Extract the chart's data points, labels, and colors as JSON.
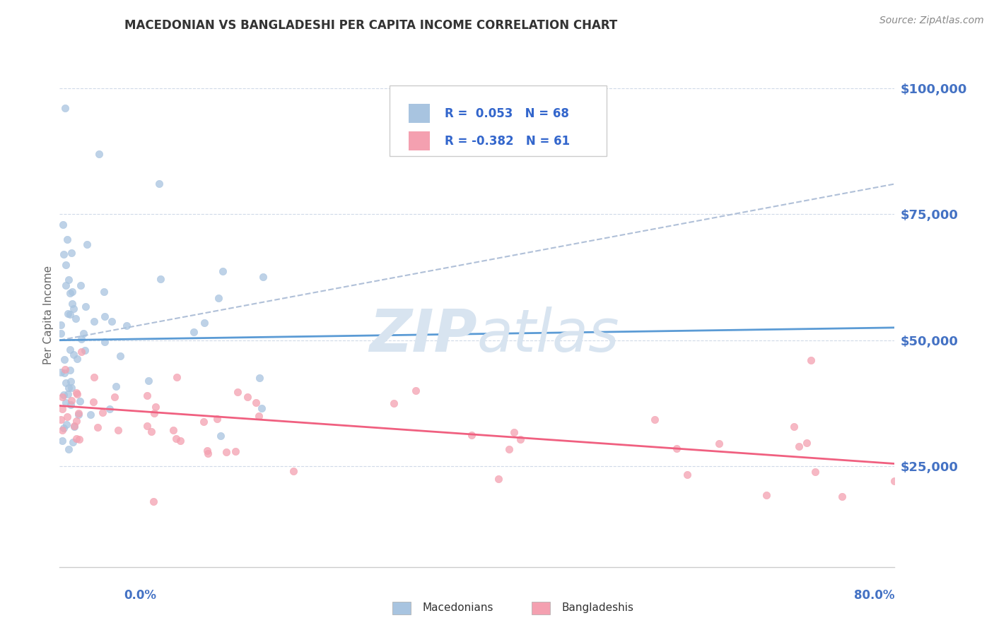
{
  "title": "MACEDONIAN VS BANGLADESHI PER CAPITA INCOME CORRELATION CHART",
  "source_text": "Source: ZipAtlas.com",
  "ylabel": "Per Capita Income",
  "ytick_labels": [
    "$25,000",
    "$50,000",
    "$75,000",
    "$100,000"
  ],
  "ytick_values": [
    25000,
    50000,
    75000,
    100000
  ],
  "ymin": 5000,
  "ymax": 105000,
  "xmin": 0.0,
  "xmax": 0.8,
  "macedonian_R": 0.053,
  "macedonian_N": 68,
  "bangladeshi_R": -0.382,
  "bangladeshi_N": 61,
  "macedonian_color": "#a8c4e0",
  "bangladeshi_color": "#f4a0b0",
  "macedonian_line_color": "#5b9bd5",
  "bangladeshi_line_color": "#f06080",
  "trend_line_color": "#b0c0d8",
  "background_color": "#ffffff",
  "legend_R_color": "#3366cc",
  "watermark_color": "#d8e4f0",
  "title_fontsize": 12,
  "tick_label_color": "#4472c4",
  "grid_color": "#d0dae8"
}
